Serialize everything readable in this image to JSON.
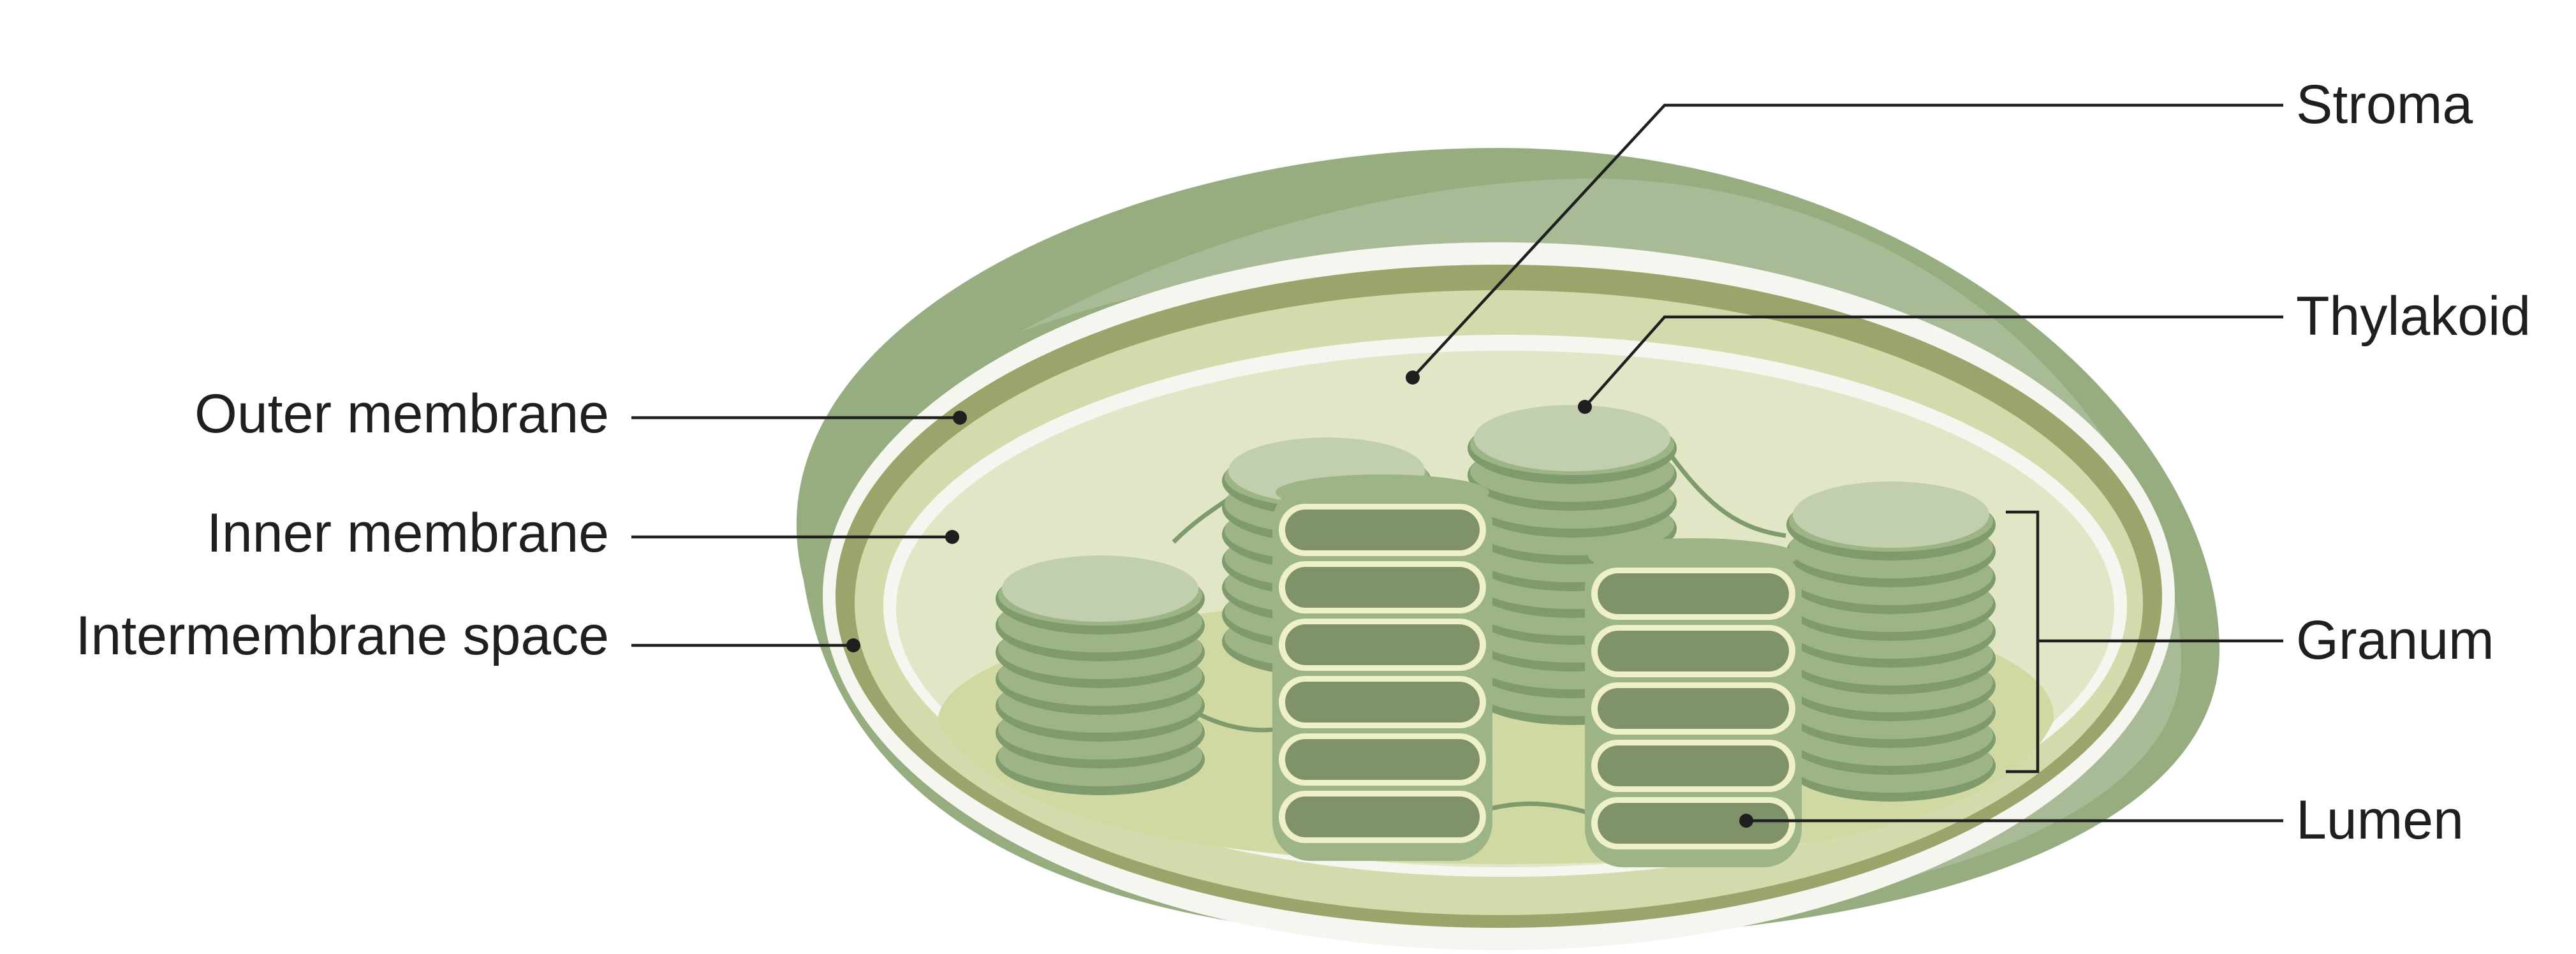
{
  "labels": {
    "stroma": "Stroma",
    "thylakoid": "Thylakoid",
    "granum": "Granum",
    "lumen": "Lumen",
    "outer_membrane": "Outer membrane",
    "inner_membrane": "Inner membrane",
    "intermembrane_space": "Intermembrane space"
  },
  "colors": {
    "outer_envelope": "#96ad80",
    "outer_envelope_light": "#a9bb96",
    "inner_membrane": "#9ba56b",
    "intermembrane_space": "#d3dbad",
    "stroma": "#e1e6c6",
    "stroma_floor": "#d0d9a2",
    "white_gap": "#f5f6f0",
    "thylakoid_disc": "#9db487",
    "thylakoid_disc_dark": "#7f9a6d",
    "thylakoid_top": "#c1cfae",
    "lumen": "#7f926a",
    "leader_line": "#1f1f1f"
  }
}
